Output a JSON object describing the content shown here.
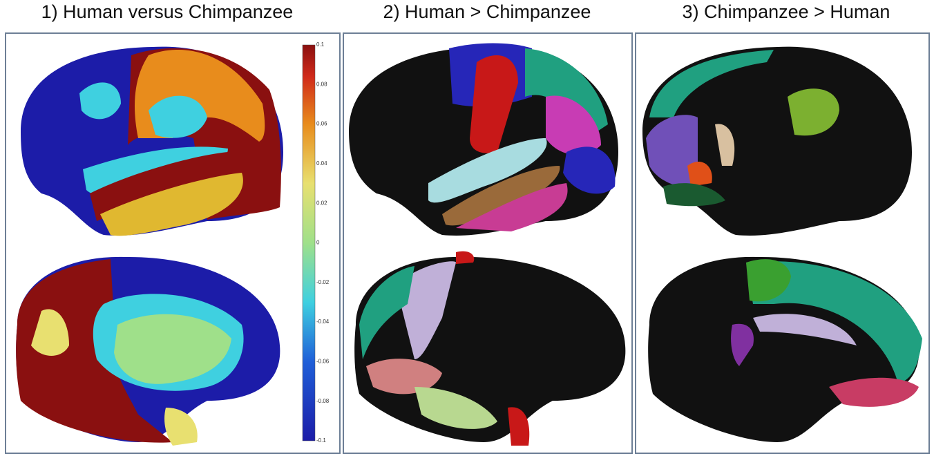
{
  "panels": [
    {
      "title": "1) Human versus Chimpanzee"
    },
    {
      "title": "2) Human >  Chimpanzee"
    },
    {
      "title": "3) Chimpanzee > Human"
    }
  ],
  "colorbar": {
    "ticks": [
      "0.1",
      "0.08",
      "0.06",
      "0.04",
      "0.02",
      "0",
      "-0.02",
      "-0.04",
      "-0.06",
      "-0.08",
      "-0.1"
    ]
  }
}
